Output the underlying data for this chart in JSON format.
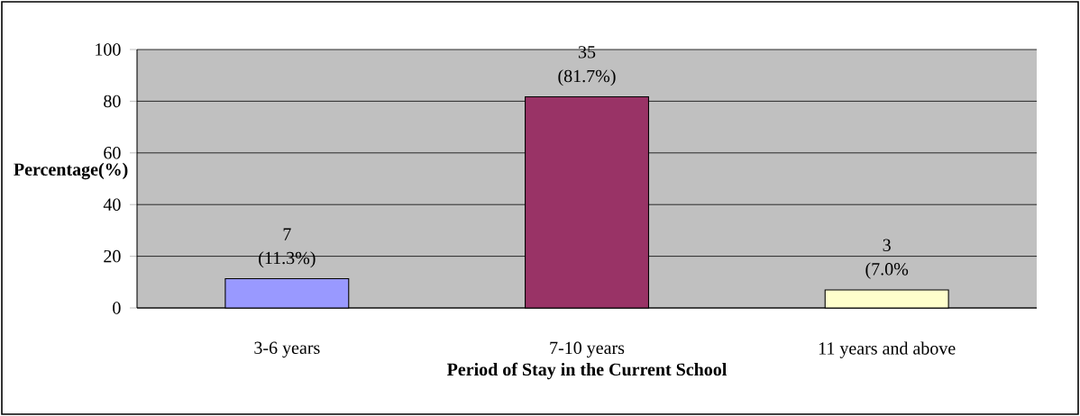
{
  "chart_data": {
    "type": "bar",
    "xlabel": "Period of Stay in the Current School",
    "ylabel": "Percentage(%)",
    "categories": [
      "3-6 years",
      "7-10 years",
      "11 years and above"
    ],
    "values": [
      11.3,
      81.7,
      7.0
    ],
    "colors": [
      "#9999ff",
      "#993366",
      "#ffffcc"
    ],
    "value_labels": [
      "(11.3%)",
      "(81.7%)",
      "(7.0%"
    ],
    "annotations": [
      {
        "text": "7",
        "x": "3-6 years",
        "y": 11.3
      },
      {
        "text": "35",
        "x": "7-10 years",
        "y": 81.7
      },
      {
        "text": "3",
        "x": "11 years and above",
        "y": 7.0
      }
    ],
    "ylim": [
      0,
      100
    ],
    "yticks": [
      0,
      20,
      40,
      60,
      80,
      100
    ],
    "grid": "y"
  }
}
